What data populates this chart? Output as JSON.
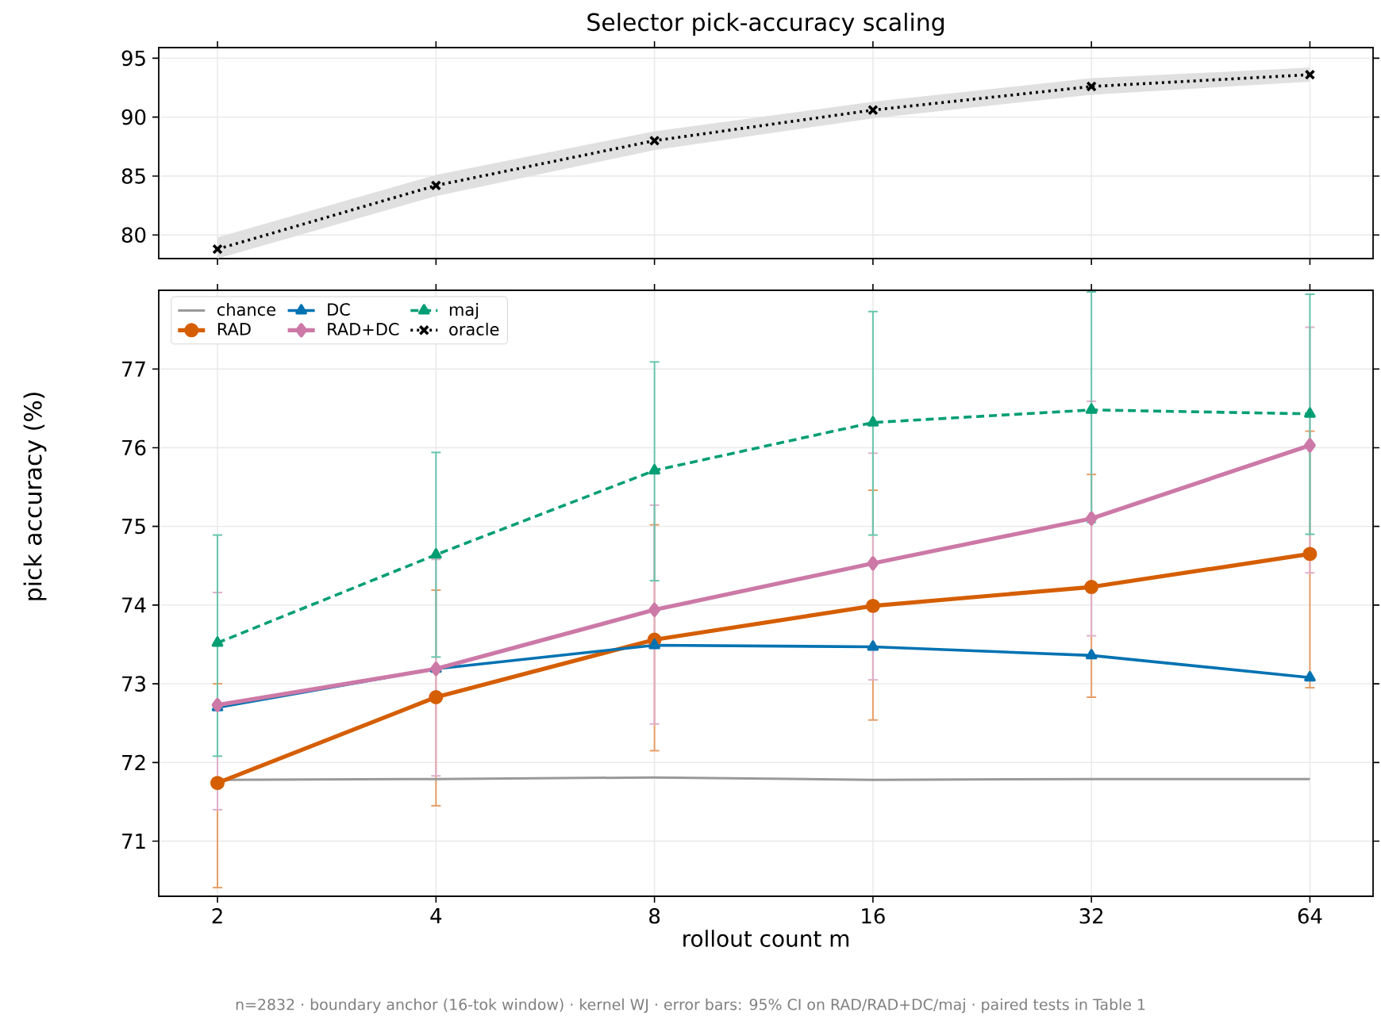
{
  "chart_data": [
    {
      "type": "line",
      "title": "Selector pick-accuracy scaling",
      "x": [
        2,
        4,
        8,
        16,
        32,
        64
      ],
      "xlim": [
        1.66,
        78.2
      ],
      "ylim": [
        78,
        95.9
      ],
      "log": "x",
      "grid": true,
      "tick_labels": "y",
      "xticks": [
        2,
        4,
        8,
        16,
        32,
        64
      ],
      "yticks": [
        80,
        85,
        90,
        95
      ],
      "series": [
        {
          "name": "oracle",
          "color": "#000000",
          "marker": "cross",
          "line_style": "dotted",
          "values": [
            78.8,
            84.2,
            88.0,
            90.6,
            92.6,
            93.6
          ],
          "lower": [
            78.0,
            83.3,
            87.2,
            89.9,
            91.9,
            93.0
          ],
          "upper": [
            79.8,
            85.1,
            88.8,
            91.3,
            93.3,
            94.2
          ]
        }
      ]
    },
    {
      "type": "line",
      "xlabel": "rollout count m",
      "ylabel": "pick accuracy (%)",
      "x": [
        2,
        4,
        8,
        16,
        32,
        64
      ],
      "xlim": [
        1.66,
        78.2
      ],
      "ylim": [
        70.3,
        78.0
      ],
      "log": "x",
      "grid": true,
      "legend": "top left",
      "xticks": [
        2,
        4,
        8,
        16,
        32,
        64
      ],
      "yticks": [
        71,
        72,
        73,
        74,
        75,
        76,
        77
      ],
      "annotations": [
        "n=2832 · boundary anchor (16-tok window) · kernel WJ · error bars: 95% CI on RAD/RAD+DC/maj · paired tests in Table 1"
      ],
      "series": [
        {
          "name": "chance",
          "color": "#999999",
          "marker": "none",
          "line_style": "solid",
          "values": [
            71.78,
            71.79,
            71.81,
            71.78,
            71.79,
            71.79
          ]
        },
        {
          "name": "RAD",
          "color": "#d55e00",
          "marker": "circle",
          "line_style": "solid",
          "values": [
            71.74,
            72.83,
            73.56,
            73.99,
            74.23,
            74.65
          ],
          "errors": [
            [
              70.41,
              73.0
            ],
            [
              71.45,
              74.19
            ],
            [
              72.15,
              75.02
            ],
            [
              72.54,
              75.46
            ],
            [
              72.83,
              75.66
            ],
            [
              72.95,
              76.21
            ]
          ]
        },
        {
          "name": "DC",
          "color": "#0072b2",
          "marker": "triangle",
          "line_style": "solid",
          "values": [
            72.7,
            73.19,
            73.49,
            73.47,
            73.36,
            73.08
          ]
        },
        {
          "name": "RAD+DC",
          "color": "#cc79a7",
          "marker": "diamond",
          "line_style": "solid",
          "values": [
            72.73,
            73.19,
            73.94,
            74.53,
            75.1,
            76.03
          ],
          "errors": [
            [
              71.4,
              74.16
            ],
            [
              71.83,
              74.58
            ],
            [
              72.49,
              75.27
            ],
            [
              73.05,
              75.93
            ],
            [
              73.61,
              76.59
            ],
            [
              74.41,
              77.53
            ]
          ]
        },
        {
          "name": "maj",
          "color": "#009e73",
          "marker": "triangle",
          "line_style": "dashed",
          "values": [
            73.52,
            74.64,
            75.71,
            76.32,
            76.48,
            76.43
          ],
          "errors": [
            [
              72.08,
              74.89
            ],
            [
              73.34,
              75.94
            ],
            [
              74.31,
              77.09
            ],
            [
              74.89,
              77.73
            ],
            [
              75.05,
              77.98
            ],
            [
              74.9,
              77.95
            ]
          ]
        }
      ]
    }
  ]
}
